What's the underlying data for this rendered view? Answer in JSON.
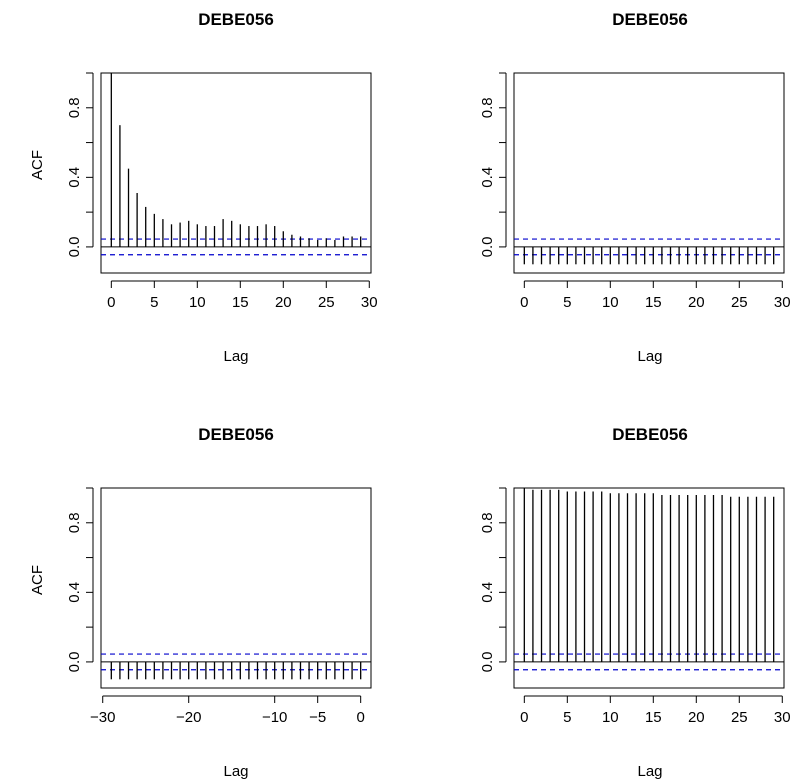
{
  "chart_data": [
    {
      "type": "bar",
      "title": "DEBE056",
      "xlabel": "Lag",
      "ylabel": "ACF",
      "xlim": [
        -1.2,
        30.2
      ],
      "ylim": [
        -0.15,
        1.0
      ],
      "xticks": [
        "0",
        "5",
        "10",
        "15",
        "20",
        "25",
        "30"
      ],
      "yticks": [
        "0.0",
        "0.4",
        "0.8"
      ],
      "confidence_band": [
        -0.045,
        0.045
      ],
      "lags": [
        0,
        1,
        2,
        3,
        4,
        5,
        6,
        7,
        8,
        9,
        10,
        11,
        12,
        13,
        14,
        15,
        16,
        17,
        18,
        19,
        20,
        21,
        22,
        23,
        24,
        25,
        26,
        27,
        28,
        29
      ],
      "values": [
        1.0,
        0.7,
        0.45,
        0.31,
        0.23,
        0.19,
        0.16,
        0.13,
        0.14,
        0.15,
        0.13,
        0.12,
        0.12,
        0.16,
        0.15,
        0.13,
        0.12,
        0.12,
        0.13,
        0.12,
        0.09,
        0.07,
        0.06,
        0.05,
        0.04,
        0.05,
        0.04,
        0.06,
        0.06,
        0.06
      ],
      "colors": {
        "bars": "#000000",
        "band": "#0000cc"
      }
    },
    {
      "type": "bar",
      "title": "DEBE056",
      "xlabel": "Lag",
      "ylabel": "",
      "xlim": [
        -1.2,
        30.2
      ],
      "ylim": [
        -0.15,
        1.0
      ],
      "xticks": [
        "0",
        "5",
        "10",
        "15",
        "20",
        "25",
        "30"
      ],
      "yticks": [
        "0.0",
        "0.4",
        "0.8"
      ],
      "confidence_band": [
        -0.045,
        0.045
      ],
      "lags": [
        0,
        1,
        2,
        3,
        4,
        5,
        6,
        7,
        8,
        9,
        10,
        11,
        12,
        13,
        14,
        15,
        16,
        17,
        18,
        19,
        20,
        21,
        22,
        23,
        24,
        25,
        26,
        27,
        28,
        29
      ],
      "values": [
        -0.1,
        -0.1,
        -0.1,
        -0.1,
        -0.1,
        -0.1,
        -0.1,
        -0.1,
        -0.1,
        -0.1,
        -0.1,
        -0.1,
        -0.1,
        -0.1,
        -0.1,
        -0.1,
        -0.1,
        -0.1,
        -0.1,
        -0.1,
        -0.1,
        -0.1,
        -0.1,
        -0.1,
        -0.1,
        -0.1,
        -0.1,
        -0.1,
        -0.1,
        -0.1
      ],
      "colors": {
        "bars": "#000000",
        "band": "#0000cc"
      }
    },
    {
      "type": "bar",
      "title": "DEBE056",
      "xlabel": "Lag",
      "ylabel": "ACF",
      "xlim": [
        -30.2,
        1.2
      ],
      "ylim": [
        -0.15,
        1.0
      ],
      "xticks": [
        "−30",
        "−20",
        "−10",
        "−5",
        "0"
      ],
      "xtick_values": [
        -30,
        -20,
        -10,
        -5,
        0
      ],
      "yticks": [
        "0.0",
        "0.4",
        "0.8"
      ],
      "confidence_band": [
        -0.045,
        0.045
      ],
      "lags": [
        -29,
        -28,
        -27,
        -26,
        -25,
        -24,
        -23,
        -22,
        -21,
        -20,
        -19,
        -18,
        -17,
        -16,
        -15,
        -14,
        -13,
        -12,
        -11,
        -10,
        -9,
        -8,
        -7,
        -6,
        -5,
        -4,
        -3,
        -2,
        -1,
        0
      ],
      "values": [
        -0.1,
        -0.1,
        -0.1,
        -0.1,
        -0.1,
        -0.1,
        -0.1,
        -0.1,
        -0.1,
        -0.1,
        -0.1,
        -0.1,
        -0.1,
        -0.1,
        -0.1,
        -0.1,
        -0.1,
        -0.1,
        -0.1,
        -0.1,
        -0.1,
        -0.1,
        -0.1,
        -0.1,
        -0.1,
        -0.1,
        -0.1,
        -0.1,
        -0.1,
        -0.1
      ],
      "colors": {
        "bars": "#000000",
        "band": "#0000cc"
      }
    },
    {
      "type": "bar",
      "title": "DEBE056",
      "xlabel": "Lag",
      "ylabel": "",
      "xlim": [
        -1.2,
        30.2
      ],
      "ylim": [
        -0.15,
        1.0
      ],
      "xticks": [
        "0",
        "5",
        "10",
        "15",
        "20",
        "25",
        "30"
      ],
      "yticks": [
        "0.0",
        "0.4",
        "0.8"
      ],
      "confidence_band": [
        -0.045,
        0.045
      ],
      "lags": [
        0,
        1,
        2,
        3,
        4,
        5,
        6,
        7,
        8,
        9,
        10,
        11,
        12,
        13,
        14,
        15,
        16,
        17,
        18,
        19,
        20,
        21,
        22,
        23,
        24,
        25,
        26,
        27,
        28,
        29
      ],
      "values": [
        1.0,
        0.99,
        0.99,
        0.99,
        0.99,
        0.98,
        0.98,
        0.98,
        0.98,
        0.98,
        0.97,
        0.97,
        0.97,
        0.97,
        0.97,
        0.97,
        0.96,
        0.96,
        0.96,
        0.96,
        0.96,
        0.96,
        0.96,
        0.96,
        0.95,
        0.95,
        0.95,
        0.95,
        0.95,
        0.95
      ],
      "colors": {
        "bars": "#000000",
        "band": "#0000cc"
      }
    }
  ]
}
